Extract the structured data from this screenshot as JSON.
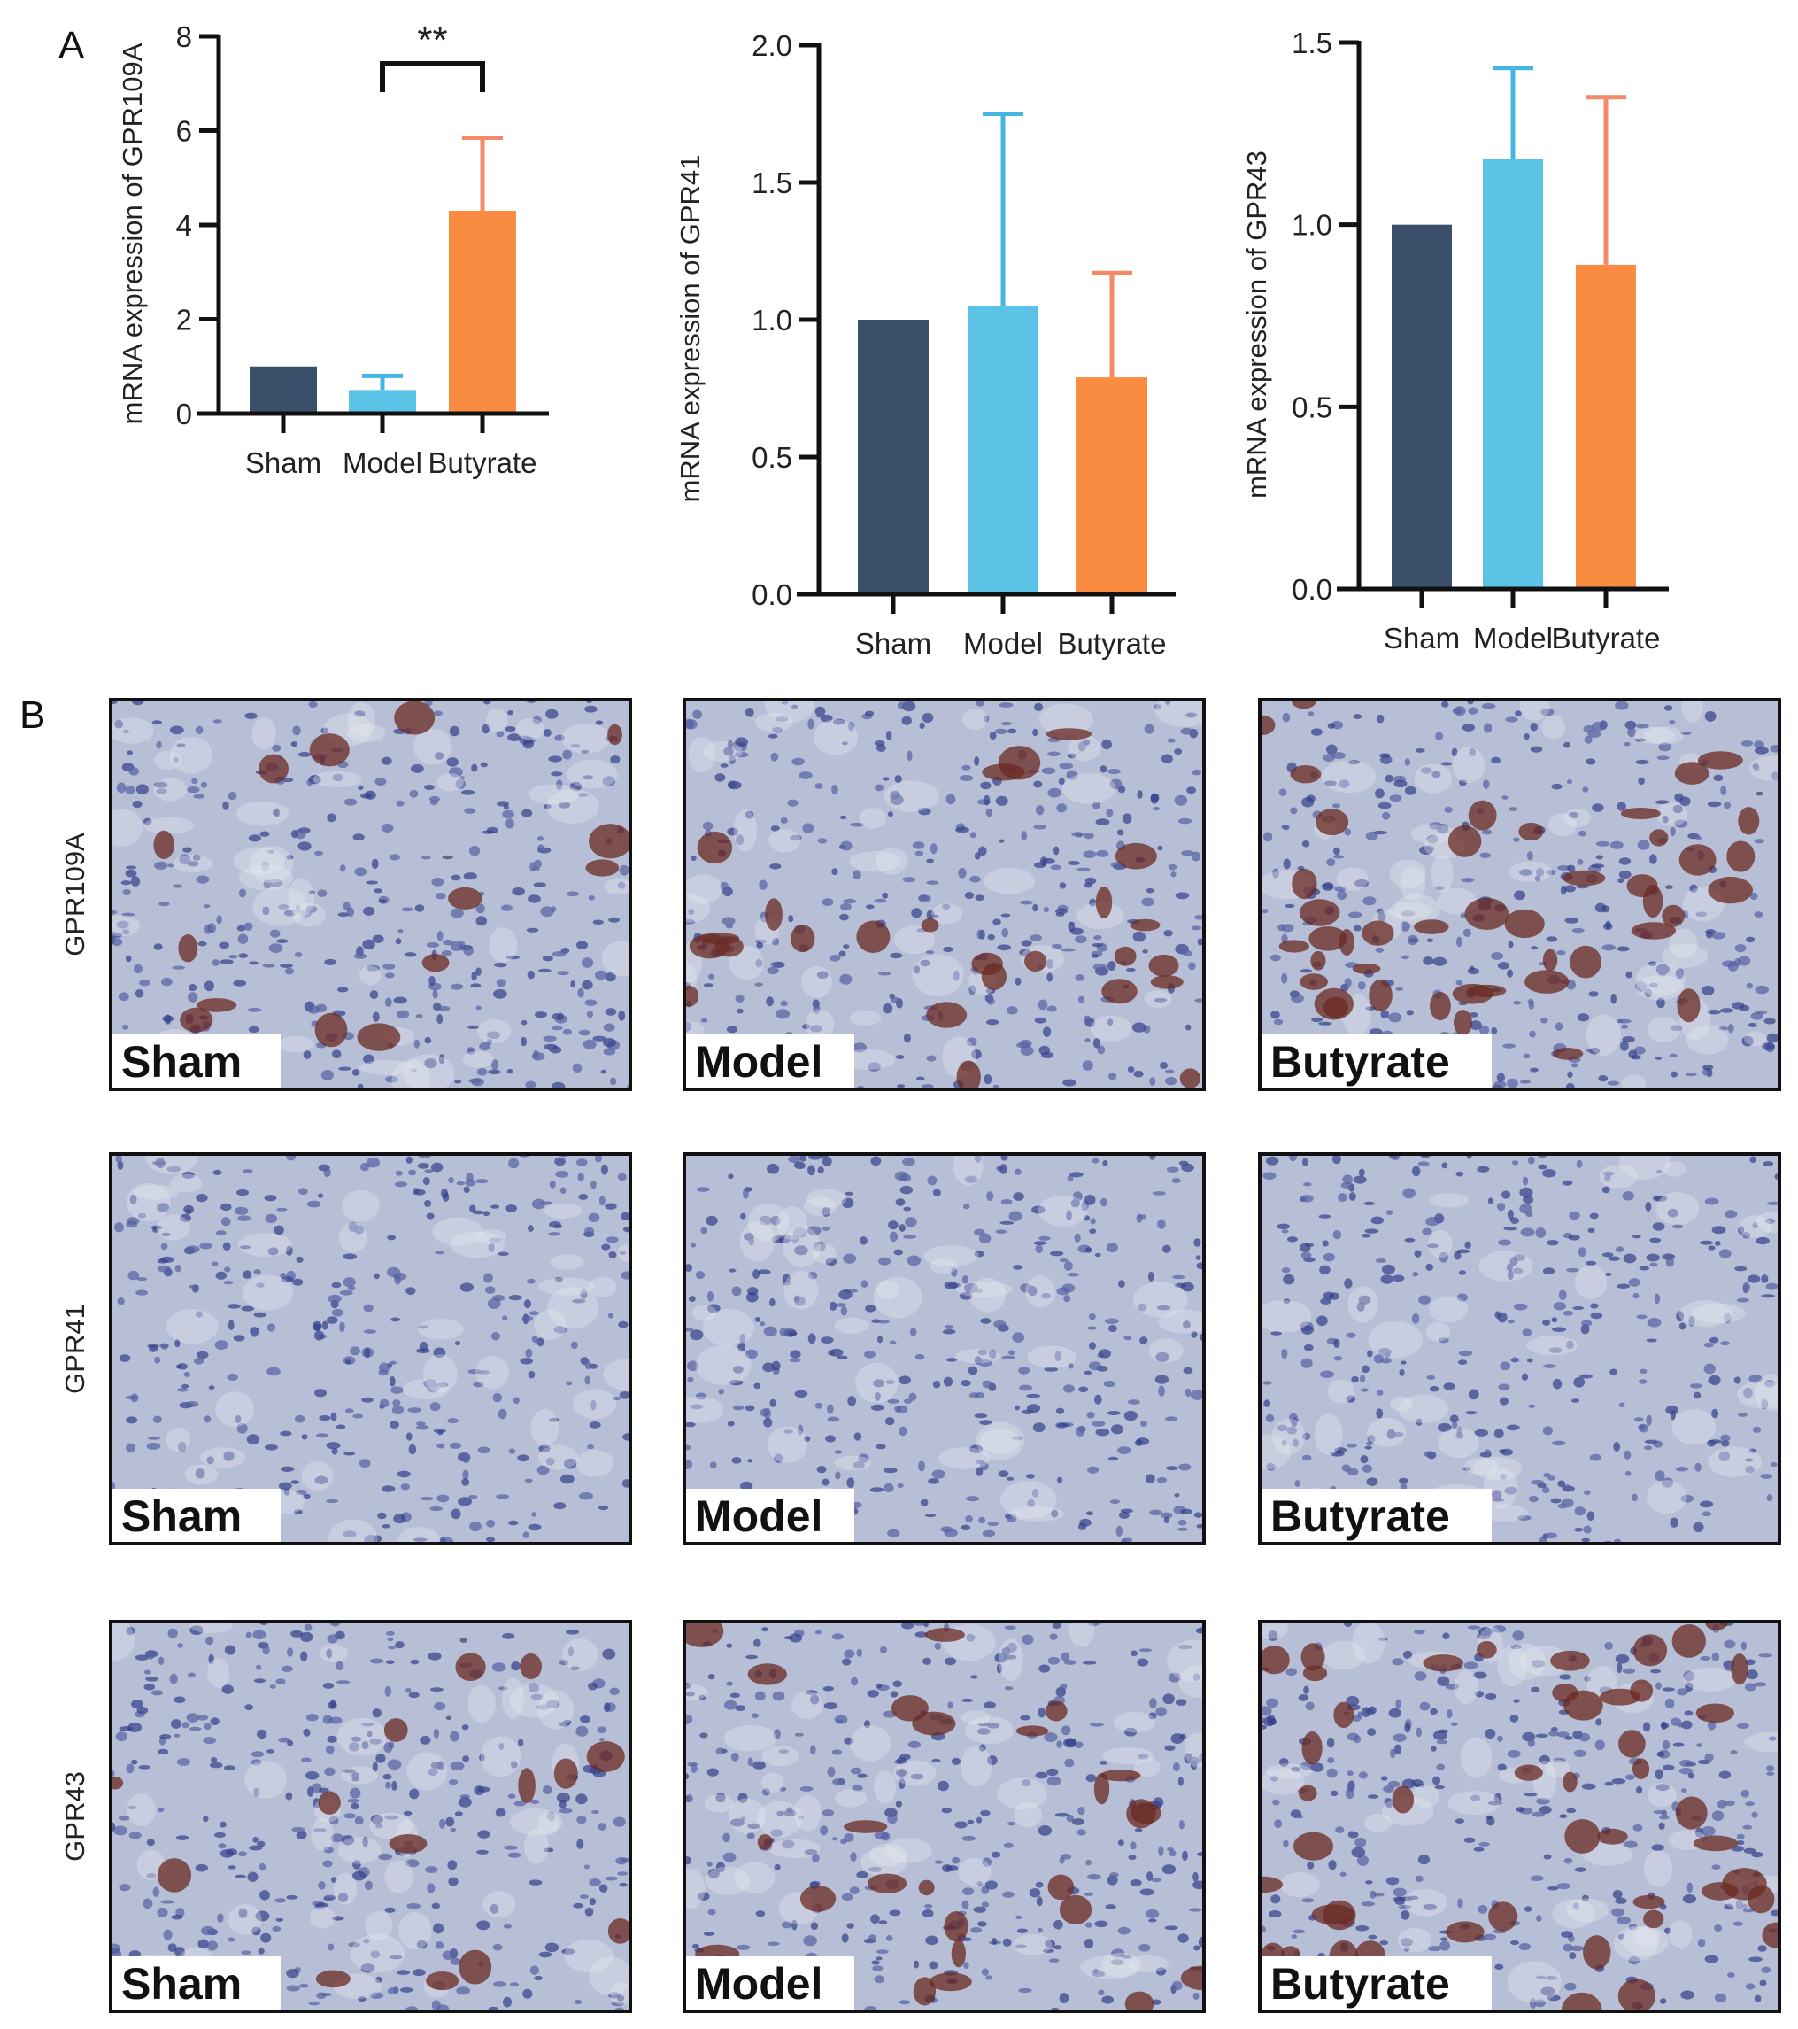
{
  "panel_labels": {
    "a": "A",
    "b": "B"
  },
  "colors": {
    "sham": "#3a4f6a",
    "model": "#5bc4e6",
    "butyrate": "#f98c40",
    "model_err": "#45b6e2",
    "butyrate_err": "#f48a66"
  },
  "chart_data": [
    {
      "type": "bar",
      "categories": [
        "Sham",
        "Model",
        "Butyrate"
      ],
      "values": [
        1.0,
        0.5,
        4.3
      ],
      "error_upper": [
        null,
        0.8,
        5.85
      ],
      "ylabel": "mRNA expression of GPR109A",
      "ylim": [
        0,
        8
      ],
      "yticks": [
        "0",
        "2",
        "4",
        "6",
        "8"
      ],
      "significance": {
        "between": [
          "Model",
          "Butyrate"
        ],
        "label": "**"
      },
      "grid": false
    },
    {
      "type": "bar",
      "categories": [
        "Sham",
        "Model",
        "Butyrate"
      ],
      "values": [
        1.0,
        1.05,
        0.79
      ],
      "error_upper": [
        null,
        1.75,
        1.17
      ],
      "ylabel": "mRNA expression of GPR41",
      "ylim": [
        0,
        2.0
      ],
      "yticks": [
        "0.0",
        "0.5",
        "1.0",
        "1.5",
        "2.0"
      ],
      "grid": false
    },
    {
      "type": "bar",
      "categories": [
        "Sham",
        "Model",
        "Butyrate"
      ],
      "values": [
        1.0,
        1.18,
        0.89
      ],
      "error_upper": [
        null,
        1.43,
        1.35
      ],
      "ylabel": "mRNA expression of GPR43",
      "ylim": [
        0,
        1.5
      ],
      "yticks": [
        "0.0",
        "0.5",
        "1.0",
        "1.5"
      ],
      "grid": false
    }
  ],
  "histology": {
    "rows": [
      {
        "label": "GPR109A",
        "images": [
          {
            "label": "Sham",
            "stain": "light"
          },
          {
            "label": "Model",
            "stain": "medium"
          },
          {
            "label": "Butyrate",
            "stain": "strong"
          }
        ]
      },
      {
        "label": "GPR41",
        "images": [
          {
            "label": "Sham",
            "stain": "none"
          },
          {
            "label": "Model",
            "stain": "none"
          },
          {
            "label": "Butyrate",
            "stain": "none"
          }
        ]
      },
      {
        "label": "GPR43",
        "images": [
          {
            "label": "Sham",
            "stain": "light"
          },
          {
            "label": "Model",
            "stain": "medium"
          },
          {
            "label": "Butyrate",
            "stain": "strong"
          }
        ]
      }
    ]
  }
}
